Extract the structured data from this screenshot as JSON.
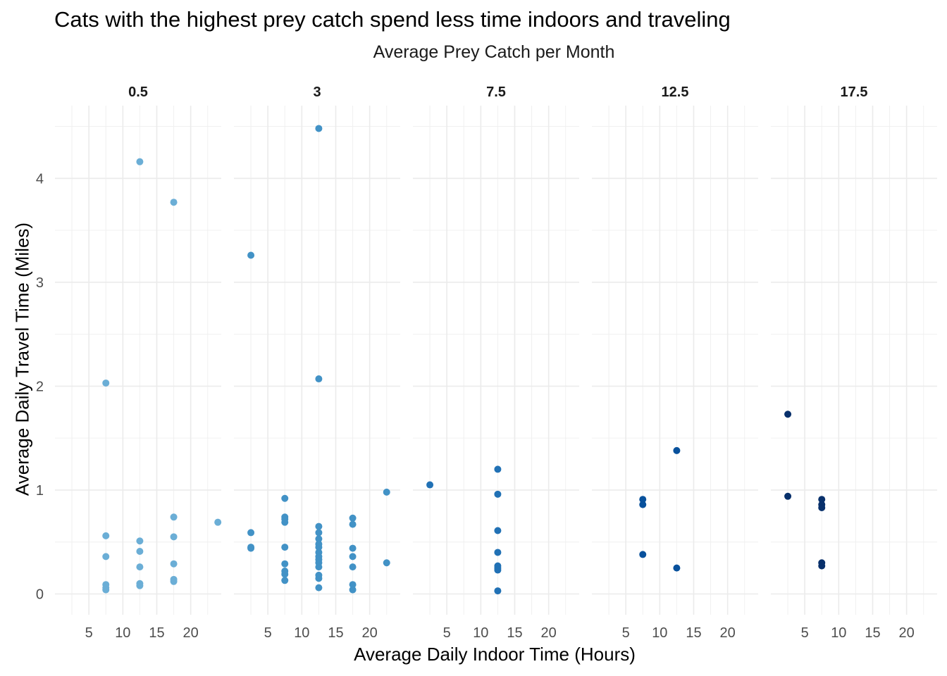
{
  "chart_data": {
    "type": "scatter",
    "title": "Cats with the highest prey catch spend less time indoors and traveling",
    "subtitle": "Average Prey Catch per Month",
    "xlabel": "Average Daily Indoor Time (Hours)",
    "ylabel": "Average Daily Travel Time (Miles)",
    "xlim": [
      0.0,
      24.5
    ],
    "ylim": [
      -0.2,
      4.7
    ],
    "x_ticks": [
      5,
      10,
      15,
      20
    ],
    "y_ticks": [
      0,
      1,
      2,
      3,
      4
    ],
    "grid": true,
    "legend": "none",
    "facets": [
      {
        "label": "0.5",
        "color": "#6baed6",
        "points": [
          [
            7.5,
            2.03
          ],
          [
            7.5,
            0.56
          ],
          [
            7.5,
            0.36
          ],
          [
            7.5,
            0.09
          ],
          [
            7.5,
            0.06
          ],
          [
            7.5,
            0.04
          ],
          [
            12.5,
            4.16
          ],
          [
            12.5,
            0.51
          ],
          [
            12.5,
            0.41
          ],
          [
            12.5,
            0.26
          ],
          [
            12.5,
            0.1
          ],
          [
            12.5,
            0.08
          ],
          [
            17.5,
            3.77
          ],
          [
            17.5,
            0.74
          ],
          [
            17.5,
            0.55
          ],
          [
            17.5,
            0.29
          ],
          [
            17.5,
            0.14
          ],
          [
            17.5,
            0.12
          ],
          [
            24.0,
            0.69
          ]
        ]
      },
      {
        "label": "3",
        "color": "#4292c6",
        "points": [
          [
            2.5,
            3.26
          ],
          [
            2.5,
            0.59
          ],
          [
            2.5,
            0.45
          ],
          [
            2.5,
            0.44
          ],
          [
            7.5,
            0.92
          ],
          [
            7.5,
            0.74
          ],
          [
            7.5,
            0.72
          ],
          [
            7.5,
            0.69
          ],
          [
            7.5,
            0.45
          ],
          [
            7.5,
            0.29
          ],
          [
            7.5,
            0.22
          ],
          [
            7.5,
            0.19
          ],
          [
            7.5,
            0.13
          ],
          [
            12.5,
            4.48
          ],
          [
            12.5,
            2.07
          ],
          [
            12.5,
            0.65
          ],
          [
            12.5,
            0.59
          ],
          [
            12.5,
            0.53
          ],
          [
            12.5,
            0.48
          ],
          [
            12.5,
            0.45
          ],
          [
            12.5,
            0.4
          ],
          [
            12.5,
            0.36
          ],
          [
            12.5,
            0.33
          ],
          [
            12.5,
            0.3
          ],
          [
            12.5,
            0.26
          ],
          [
            12.5,
            0.18
          ],
          [
            12.5,
            0.15
          ],
          [
            12.5,
            0.06
          ],
          [
            17.5,
            0.73
          ],
          [
            17.5,
            0.67
          ],
          [
            17.5,
            0.44
          ],
          [
            17.5,
            0.36
          ],
          [
            17.5,
            0.26
          ],
          [
            17.5,
            0.09
          ],
          [
            17.5,
            0.04
          ],
          [
            22.5,
            0.98
          ],
          [
            22.5,
            0.3
          ]
        ]
      },
      {
        "label": "7.5",
        "color": "#2171b5",
        "points": [
          [
            2.5,
            1.05
          ],
          [
            12.5,
            1.2
          ],
          [
            12.5,
            0.96
          ],
          [
            12.5,
            0.61
          ],
          [
            12.5,
            0.4
          ],
          [
            12.5,
            0.27
          ],
          [
            12.5,
            0.25
          ],
          [
            12.5,
            0.23
          ],
          [
            12.5,
            0.03
          ]
        ]
      },
      {
        "label": "12.5",
        "color": "#08519c",
        "points": [
          [
            7.5,
            0.91
          ],
          [
            7.5,
            0.86
          ],
          [
            7.5,
            0.38
          ],
          [
            12.5,
            1.38
          ],
          [
            12.5,
            0.25
          ]
        ]
      },
      {
        "label": "17.5",
        "color": "#08306b",
        "points": [
          [
            2.5,
            1.73
          ],
          [
            2.5,
            0.94
          ],
          [
            7.5,
            0.91
          ],
          [
            7.5,
            0.86
          ],
          [
            7.5,
            0.83
          ],
          [
            7.5,
            0.3
          ],
          [
            7.5,
            0.27
          ]
        ]
      }
    ]
  }
}
